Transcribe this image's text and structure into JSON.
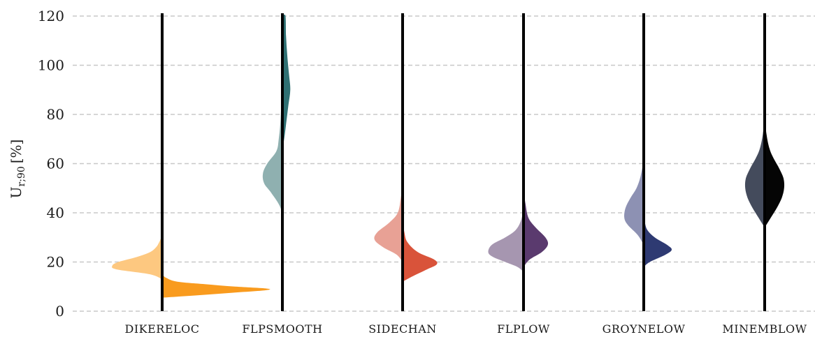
{
  "chart_data": {
    "type": "violin",
    "split": true,
    "ylabel": "U",
    "ylabel_sub": "r;90",
    "ylabel_unit": "[%]",
    "ylim": [
      0,
      120
    ],
    "yticks": [
      0,
      20,
      40,
      60,
      80,
      100,
      120
    ],
    "grid": true,
    "categories": [
      "DIKERELOC",
      "FLPSMOOTH",
      "SIDECHAN",
      "FLPLOW",
      "GROYNELOW",
      "MINEMBLOW"
    ],
    "violins": [
      {
        "category": "DIKERELOC",
        "left_color": "#fdc880",
        "right_color": "#f99b1e",
        "left": [
          [
            13,
            0
          ],
          [
            15,
            0.2
          ],
          [
            17,
            0.75
          ],
          [
            18.5,
            0.82
          ],
          [
            20,
            0.72
          ],
          [
            22,
            0.42
          ],
          [
            24,
            0.2
          ],
          [
            26,
            0.1
          ],
          [
            28,
            0.05
          ],
          [
            31,
            0
          ]
        ],
        "right": [
          [
            5.5,
            0
          ],
          [
            6.5,
            0.6
          ],
          [
            7.5,
            1.15
          ],
          [
            8.5,
            1.7
          ],
          [
            9.2,
            1.72
          ],
          [
            10,
            1.2
          ],
          [
            11,
            0.7
          ],
          [
            12,
            0.25
          ],
          [
            13.5,
            0.07
          ],
          [
            15,
            0
          ]
        ]
      },
      {
        "category": "FLPSMOOTH",
        "left_color": "#8fb0b0",
        "right_color": "#2f7073",
        "left": [
          [
            36,
            0
          ],
          [
            42,
            0.03
          ],
          [
            48,
            0.18
          ],
          [
            52,
            0.3
          ],
          [
            56,
            0.32
          ],
          [
            60,
            0.25
          ],
          [
            65,
            0.1
          ],
          [
            70,
            0.06
          ],
          [
            78,
            0.03
          ],
          [
            90,
            0.01
          ],
          [
            100,
            0
          ]
        ],
        "right": [
          [
            65,
            0
          ],
          [
            72,
            0.04
          ],
          [
            78,
            0.07
          ],
          [
            84,
            0.1
          ],
          [
            90,
            0.13
          ],
          [
            96,
            0.11
          ],
          [
            104,
            0.08
          ],
          [
            112,
            0.06
          ],
          [
            120,
            0.05
          ]
        ]
      },
      {
        "category": "SIDECHAN",
        "left_color": "#e8a195",
        "right_color": "#d9533a",
        "left": [
          [
            20,
            0
          ],
          [
            23,
            0.1
          ],
          [
            26,
            0.32
          ],
          [
            29,
            0.46
          ],
          [
            32,
            0.42
          ],
          [
            36,
            0.22
          ],
          [
            40,
            0.08
          ],
          [
            46,
            0.03
          ],
          [
            52,
            0
          ]
        ],
        "right": [
          [
            12,
            0
          ],
          [
            14,
            0.15
          ],
          [
            17,
            0.4
          ],
          [
            19,
            0.56
          ],
          [
            21,
            0.52
          ],
          [
            24,
            0.25
          ],
          [
            28,
            0.08
          ],
          [
            32,
            0.03
          ],
          [
            38,
            0
          ]
        ],
        "left_offset": 0
      },
      {
        "category": "FLPLOW",
        "left_color": "#a696b0",
        "right_color": "#5a3a6e",
        "left": [
          [
            16,
            0
          ],
          [
            18,
            0.1
          ],
          [
            20,
            0.3
          ],
          [
            22,
            0.5
          ],
          [
            24,
            0.58
          ],
          [
            27,
            0.52
          ],
          [
            30,
            0.3
          ],
          [
            33,
            0.13
          ],
          [
            37,
            0.04
          ],
          [
            42,
            0
          ]
        ],
        "right": [
          [
            18,
            0
          ],
          [
            21,
            0.1
          ],
          [
            24,
            0.3
          ],
          [
            27,
            0.4
          ],
          [
            30,
            0.36
          ],
          [
            34,
            0.2
          ],
          [
            38,
            0.08
          ],
          [
            44,
            0.03
          ],
          [
            50,
            0
          ]
        ]
      },
      {
        "category": "GROYNELOW",
        "left_color": "#8d91b3",
        "right_color": "#2e3a72",
        "left": [
          [
            27,
            0
          ],
          [
            31,
            0.1
          ],
          [
            35,
            0.26
          ],
          [
            38,
            0.32
          ],
          [
            42,
            0.3
          ],
          [
            46,
            0.22
          ],
          [
            50,
            0.12
          ],
          [
            55,
            0.05
          ],
          [
            62,
            0
          ]
        ],
        "right": [
          [
            18,
            0
          ],
          [
            20,
            0.1
          ],
          [
            23,
            0.36
          ],
          [
            25,
            0.46
          ],
          [
            27,
            0.38
          ],
          [
            30,
            0.18
          ],
          [
            33,
            0.06
          ],
          [
            36,
            0.02
          ],
          [
            40,
            0
          ]
        ]
      },
      {
        "category": "MINEMBLOW",
        "left_color": "#444b5c",
        "right_color": "#050505",
        "left": [
          [
            34,
            0
          ],
          [
            38,
            0.1
          ],
          [
            42,
            0.2
          ],
          [
            46,
            0.28
          ],
          [
            50,
            0.32
          ],
          [
            54,
            0.31
          ],
          [
            58,
            0.24
          ],
          [
            62,
            0.15
          ],
          [
            66,
            0.08
          ],
          [
            72,
            0.03
          ],
          [
            80,
            0
          ]
        ],
        "right": [
          [
            34,
            0
          ],
          [
            38,
            0.1
          ],
          [
            42,
            0.2
          ],
          [
            46,
            0.28
          ],
          [
            50,
            0.32
          ],
          [
            54,
            0.31
          ],
          [
            58,
            0.24
          ],
          [
            62,
            0.15
          ],
          [
            66,
            0.08
          ],
          [
            72,
            0.03
          ],
          [
            80,
            0
          ]
        ]
      }
    ]
  }
}
